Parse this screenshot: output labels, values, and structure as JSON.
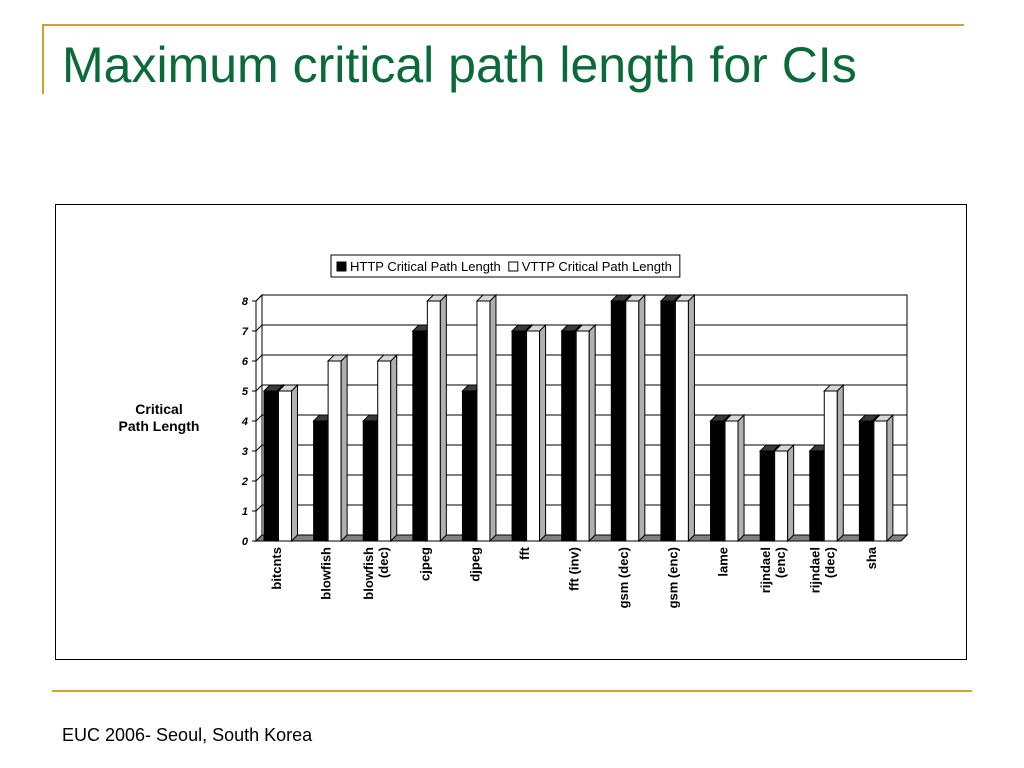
{
  "slide": {
    "title": "Maximum critical path length for CIs",
    "footer": "EUC 2006- Seoul, South Korea"
  },
  "colors": {
    "title": "#0b6a3a",
    "rule": "#d4a22c",
    "series_http": "#000000",
    "series_vttp": "#ffffff"
  },
  "chart_data": {
    "type": "bar",
    "style": "3d clustered column",
    "categories": [
      [
        "bitcnts"
      ],
      [
        "blowfish"
      ],
      [
        "blowfish",
        "(dec)"
      ],
      [
        "cjpeg"
      ],
      [
        "djpeg"
      ],
      [
        "fft"
      ],
      [
        "fft (inv)"
      ],
      [
        "gsm (dec)"
      ],
      [
        "gsm (enc)"
      ],
      [
        "lame"
      ],
      [
        "rijndael",
        "(enc)"
      ],
      [
        "rijndael",
        "(dec)"
      ],
      [
        "sha"
      ]
    ],
    "series": [
      {
        "name": "HTTP Critical Path Length",
        "values": [
          5,
          4,
          4,
          7,
          5,
          7,
          7,
          8,
          8,
          4,
          3,
          3,
          4
        ]
      },
      {
        "name": "VTTP Critical Path Length",
        "values": [
          5,
          6,
          6,
          8,
          8,
          7,
          7,
          8,
          8,
          4,
          3,
          5,
          4
        ]
      }
    ],
    "ylabel": [
      "Critical",
      "Path Length"
    ],
    "ylim": [
      0,
      8
    ],
    "yticks": [
      0,
      1,
      2,
      3,
      4,
      5,
      6,
      7,
      8
    ],
    "grid": true,
    "legend": "top"
  }
}
